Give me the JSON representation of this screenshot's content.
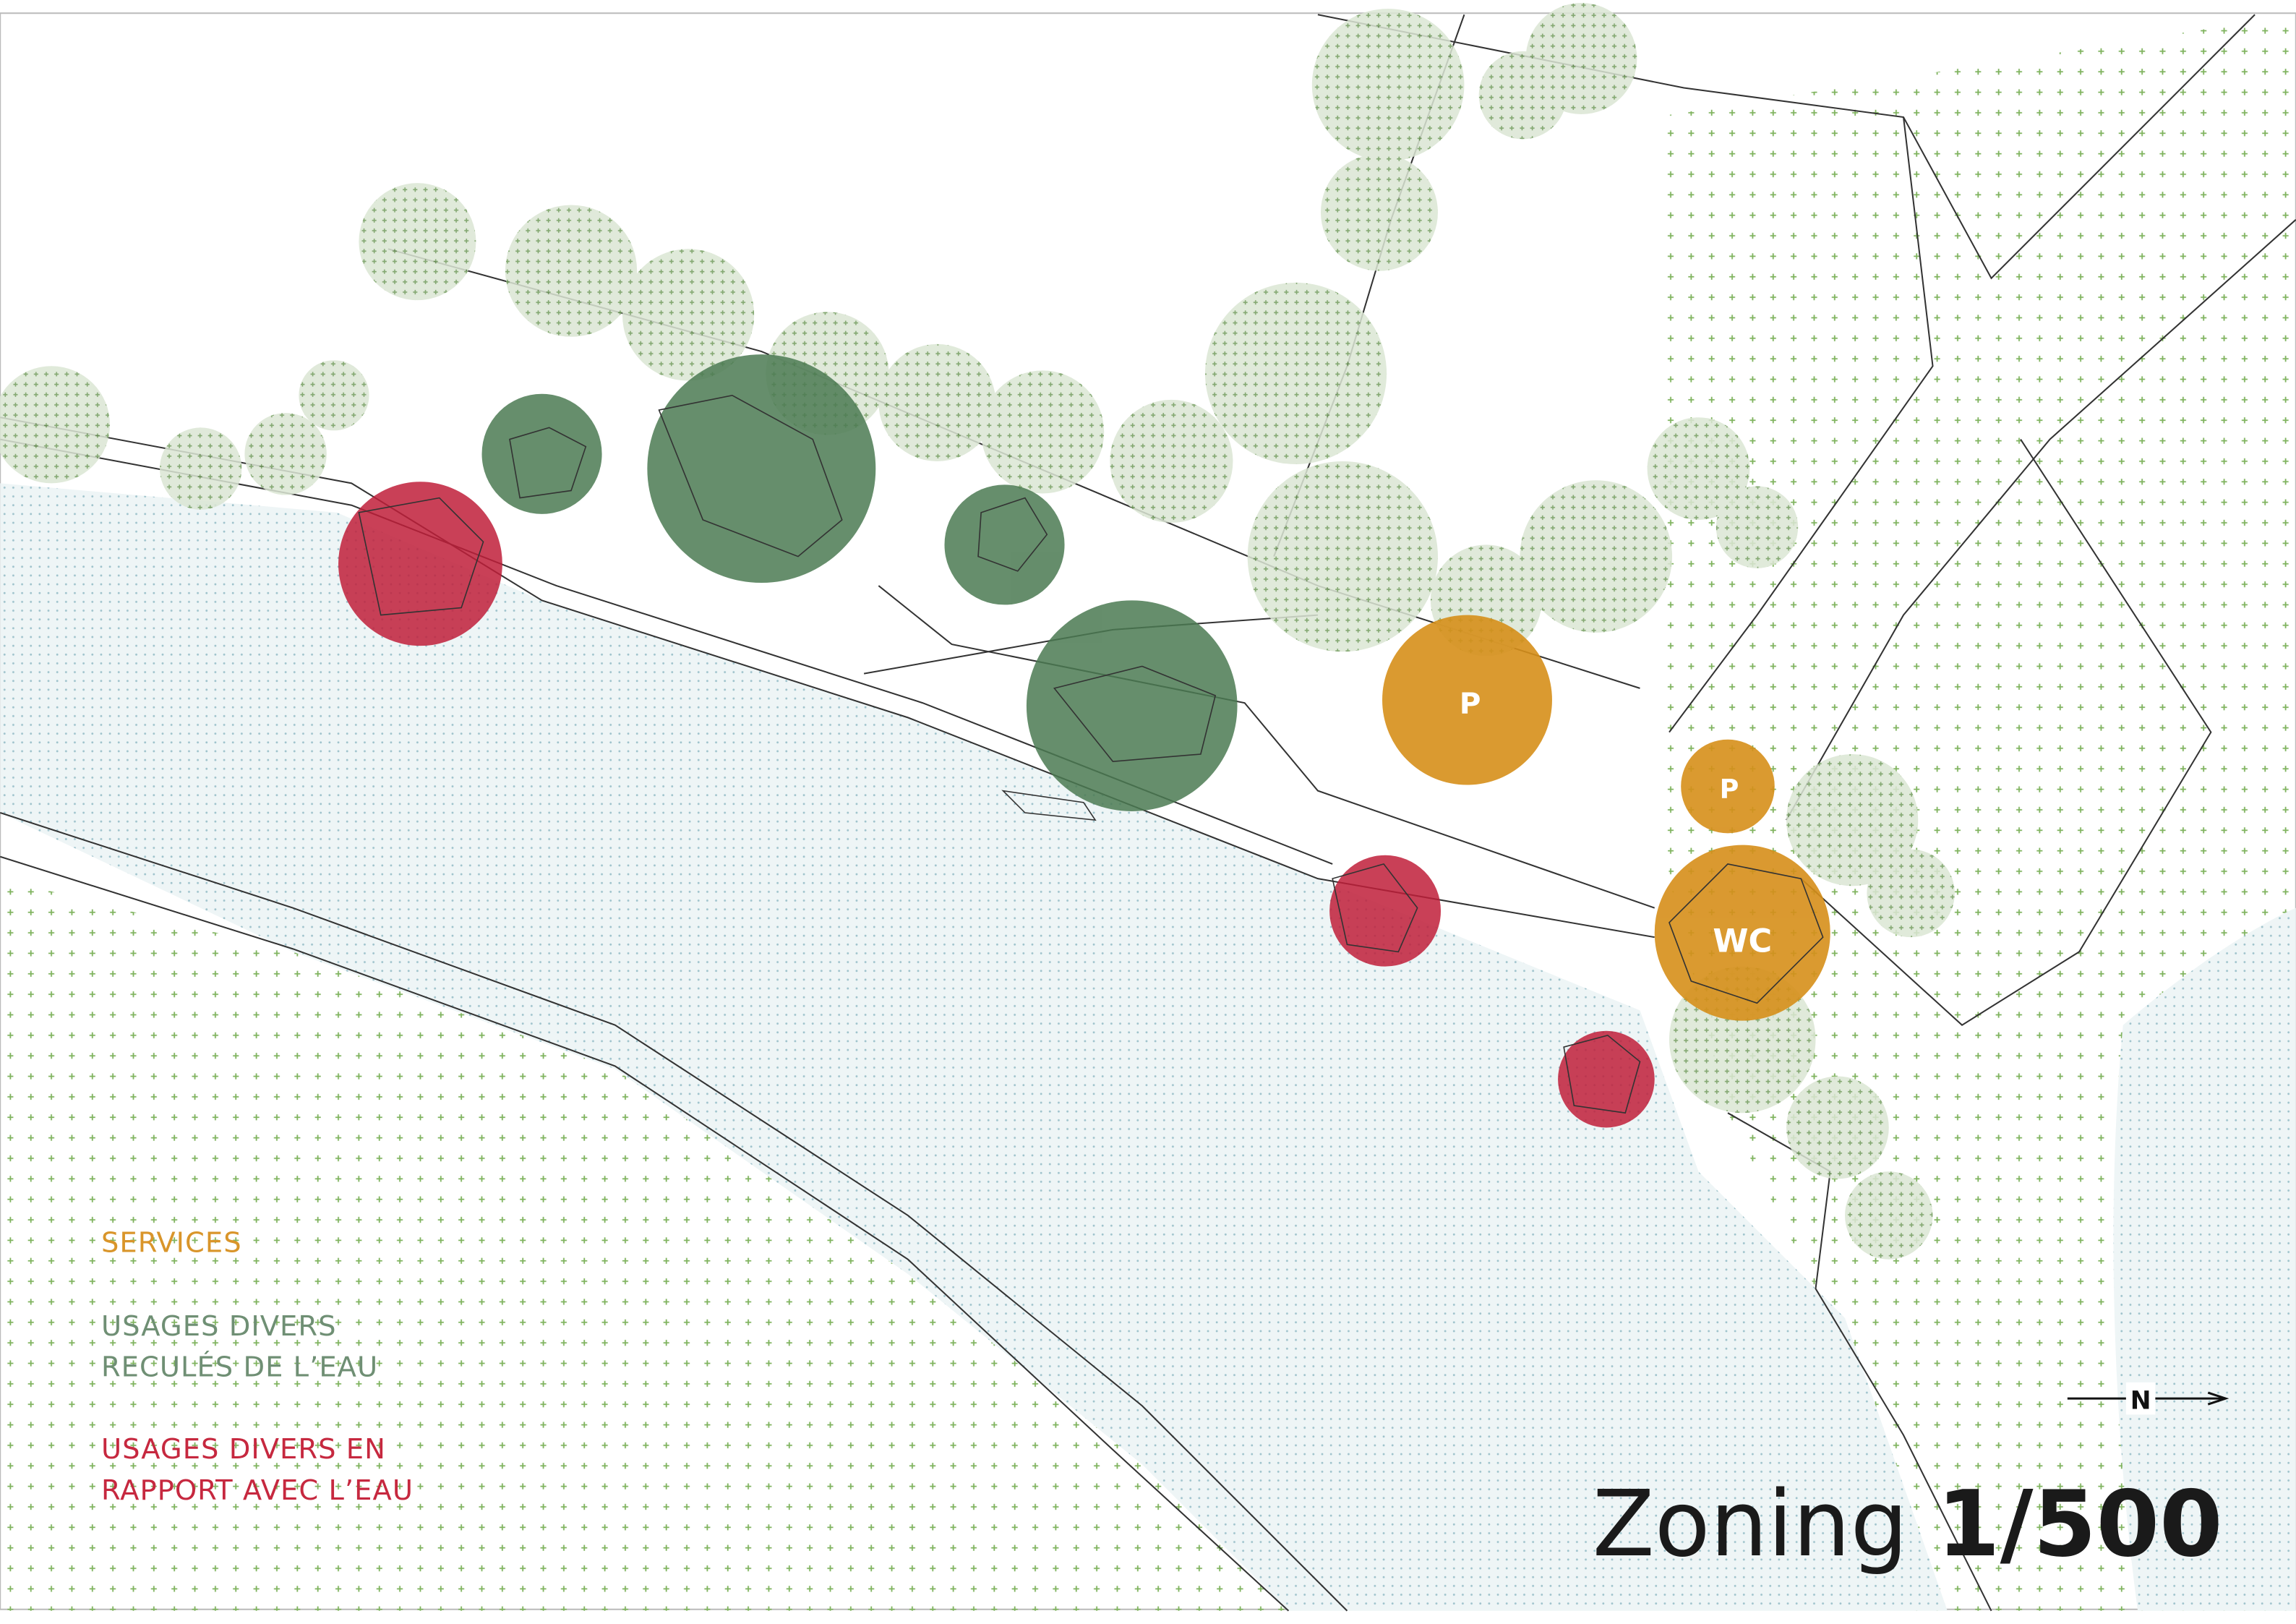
{
  "legend": [
    {
      "lines": [
        "SERVICES"
      ],
      "color": "#d9952a"
    },
    {
      "lines": [
        "USAGES DIVERS",
        "RECULÉS DE L’EAU"
      ],
      "color": "#6f8f74"
    },
    {
      "lines": [
        "USAGES DIVERS EN",
        "RAPPORT AVEC L’EAU"
      ],
      "color": "#c6283f"
    }
  ],
  "map_labels": {
    "parking_1": "P",
    "parking_2": "P",
    "toilets": "WC"
  },
  "north": "N",
  "title": {
    "word": "Zoning",
    "scale": "1/500"
  }
}
